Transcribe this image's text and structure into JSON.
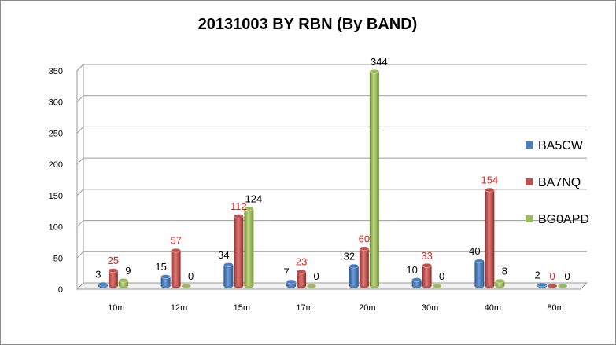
{
  "chart_data": {
    "type": "bar",
    "title": "20131003 BY RBN (By BAND)",
    "xlabel": "",
    "ylabel": "",
    "categories": [
      "10m",
      "12m",
      "15m",
      "17m",
      "20m",
      "30m",
      "40m",
      "80m"
    ],
    "ylim": [
      0,
      350
    ],
    "yticks": [
      0,
      50,
      100,
      150,
      200,
      250,
      300,
      350
    ],
    "grid": true,
    "legend": "right",
    "series": [
      {
        "name": "BA5CW",
        "color": "#4a7ebf",
        "label_color": "#000000",
        "values": [
          3,
          15,
          34,
          7,
          32,
          10,
          40,
          2
        ]
      },
      {
        "name": "BA7NQ",
        "color": "#c0504d",
        "label_color": "#e02020",
        "values": [
          25,
          57,
          112,
          23,
          60,
          33,
          154,
          0
        ]
      },
      {
        "name": "BG0APD",
        "color": "#9bbb59",
        "label_color": "#000000",
        "values": [
          9,
          0,
          124,
          0,
          344,
          0,
          8,
          0
        ]
      }
    ]
  }
}
